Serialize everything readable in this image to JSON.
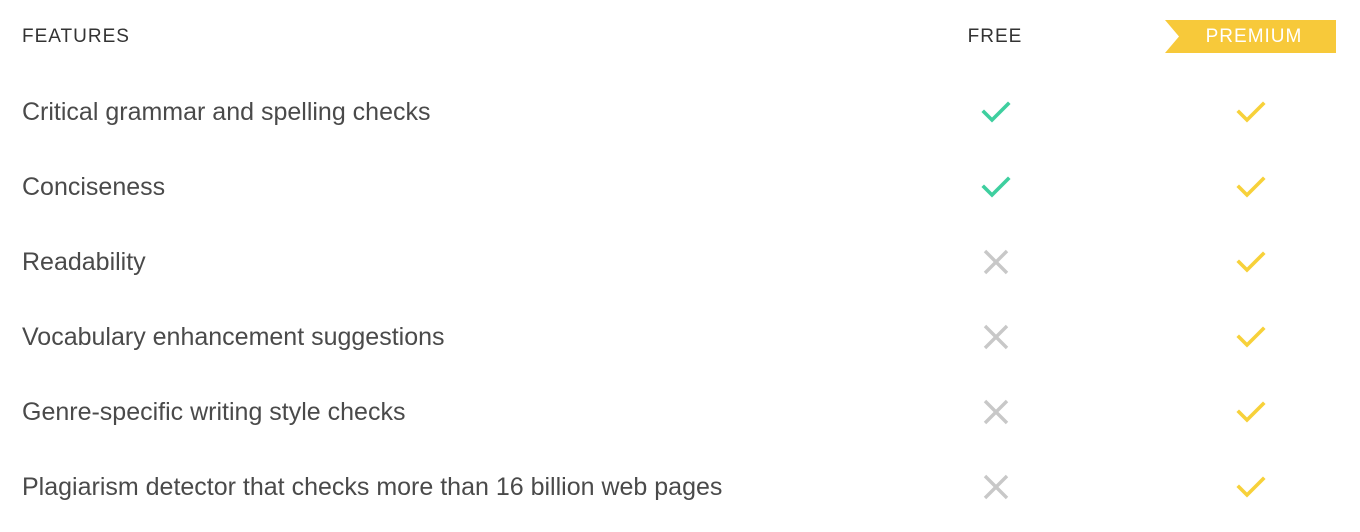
{
  "header": {
    "features_label": "FEATURES",
    "free_label": "FREE",
    "premium_label": "PREMIUM"
  },
  "colors": {
    "free_check": "#3ecf9f",
    "premium_check": "#f7d13a",
    "unavailable_x": "#c8c8c8",
    "premium_banner": "#f7c93a"
  },
  "rows": [
    {
      "label": "Critical grammar and spelling checks",
      "free": "check-icon",
      "premium": "check-icon"
    },
    {
      "label": "Conciseness",
      "free": "check-icon",
      "premium": "check-icon"
    },
    {
      "label": "Readability",
      "free": "x-icon",
      "premium": "check-icon"
    },
    {
      "label": "Vocabulary enhancement suggestions",
      "free": "x-icon",
      "premium": "check-icon"
    },
    {
      "label": "Genre-specific writing style checks",
      "free": "x-icon",
      "premium": "check-icon"
    },
    {
      "label": "Plagiarism detector that checks more than 16 billion web pages",
      "free": "x-icon",
      "premium": "check-icon"
    }
  ]
}
